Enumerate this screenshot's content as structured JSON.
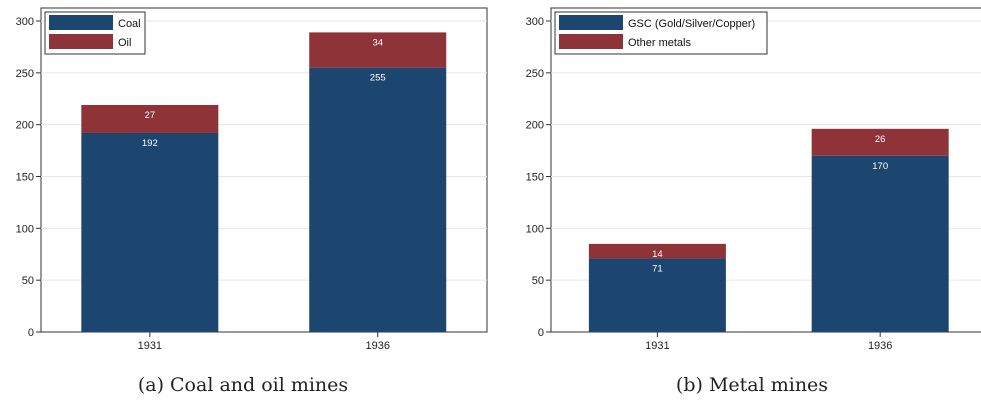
{
  "colors": {
    "primary": "#1c4670",
    "secondary": "#8e3338",
    "grid": "#e6e6e6",
    "axis": "#333333"
  },
  "chart_data": [
    {
      "type": "bar",
      "stacked": true,
      "caption": "(a) Coal and oil mines",
      "categories": [
        "1931",
        "1936"
      ],
      "series": [
        {
          "name": "Coal",
          "values": [
            192,
            255
          ]
        },
        {
          "name": "Oil",
          "values": [
            27,
            34
          ]
        }
      ],
      "ylim": [
        0,
        300
      ],
      "yticks": [
        0,
        50,
        100,
        150,
        200,
        250,
        300
      ],
      "grid": true,
      "legend": "top-left"
    },
    {
      "type": "bar",
      "stacked": true,
      "caption": "(b) Metal mines",
      "categories": [
        "1931",
        "1936"
      ],
      "series": [
        {
          "name": "GSC (Gold/Silver/Copper)",
          "values": [
            71,
            170
          ]
        },
        {
          "name": "Other metals",
          "values": [
            14,
            26
          ]
        }
      ],
      "ylim": [
        0,
        300
      ],
      "yticks": [
        0,
        50,
        100,
        150,
        200,
        250,
        300
      ],
      "grid": true,
      "legend": "top-left"
    }
  ]
}
